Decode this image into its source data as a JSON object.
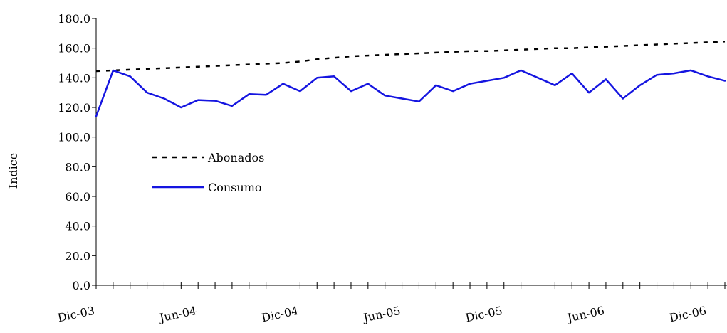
{
  "chart_data": {
    "type": "line",
    "title": "",
    "xlabel": "",
    "ylabel": "Indice",
    "ylim": [
      0,
      180
    ],
    "yticks": [
      "0.0",
      "20.0",
      "40.0",
      "60.0",
      "80.0",
      "100.0",
      "120.0",
      "140.0",
      "160.0",
      "180.0"
    ],
    "xtick_labels": [
      "Dic-03",
      "Jun-04",
      "Dic-04",
      "Jun-05",
      "Dic-05",
      "Jun-06",
      "Dic-06"
    ],
    "x": [
      "Dic-03",
      "Ene-04",
      "Feb-04",
      "Mar-04",
      "Abr-04",
      "May-04",
      "Jun-04",
      "Jul-04",
      "Ago-04",
      "Sep-04",
      "Oct-04",
      "Nov-04",
      "Dic-04",
      "Ene-05",
      "Feb-05",
      "Mar-05",
      "Abr-05",
      "May-05",
      "Jun-05",
      "Jul-05",
      "Ago-05",
      "Sep-05",
      "Oct-05",
      "Nov-05",
      "Dic-05",
      "Ene-06",
      "Feb-06",
      "Mar-06",
      "Abr-06",
      "May-06",
      "Jun-06",
      "Jul-06",
      "Ago-06",
      "Sep-06",
      "Oct-06",
      "Nov-06",
      "Dic-06",
      "Ene-07"
    ],
    "grid": false,
    "legend_position": "center-left",
    "series": [
      {
        "name": "Abonados",
        "style": "dashed",
        "color": "#000000",
        "values": [
          144.5,
          145,
          145.5,
          146,
          146.5,
          147,
          147.5,
          148,
          148.5,
          149,
          149.5,
          150,
          151,
          152.5,
          153.5,
          154.5,
          155,
          155.5,
          156,
          156.5,
          157,
          157.5,
          158,
          158,
          158.5,
          159,
          159.5,
          160,
          160,
          160.5,
          161,
          161.5,
          162,
          162.5,
          163,
          163.5,
          164,
          164.5
        ]
      },
      {
        "name": "Consumo",
        "style": "solid",
        "color": "#1515e0",
        "values": [
          114,
          145,
          141,
          130,
          126,
          120,
          125,
          124.5,
          121,
          129,
          128.5,
          136,
          131,
          140,
          141,
          131,
          136,
          128,
          126,
          124,
          135,
          131,
          136,
          138,
          140,
          145,
          140,
          135,
          143,
          130,
          139,
          126,
          135,
          142,
          143,
          145,
          141,
          138
        ]
      }
    ]
  }
}
